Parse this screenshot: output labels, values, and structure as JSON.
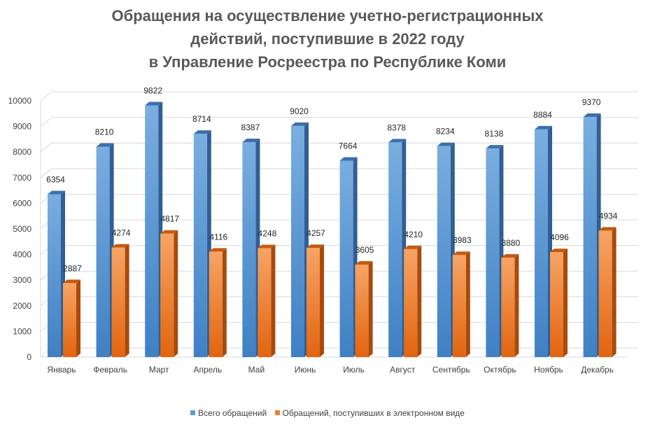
{
  "chart_data": {
    "type": "bar",
    "title_lines": [
      "Обращения на осуществление учетно-регистрационных",
      "действий, поступившие в 2022 году",
      "в Управление Росреестра по Республике Коми"
    ],
    "categories": [
      "Январь",
      "Февраль",
      "Март",
      "Апрель",
      "Май",
      "Июнь",
      "Июль",
      "Август",
      "Сентябрь",
      "Октябрь",
      "Ноябрь",
      "Декабрь"
    ],
    "series": [
      {
        "name": "Всего обращений",
        "color": "#5B9BD5",
        "values": [
          6354,
          8210,
          9822,
          8714,
          8387,
          9020,
          7664,
          8378,
          8234,
          8138,
          8884,
          9370
        ]
      },
      {
        "name": "Обращений, поступивших в электронном виде",
        "color": "#ED7D31",
        "values": [
          2887,
          4274,
          4817,
          4116,
          4248,
          4257,
          3605,
          4210,
          3983,
          3880,
          4096,
          4934
        ]
      }
    ],
    "ylim": [
      0,
      10000
    ],
    "y_ticks": [
      0,
      1000,
      2000,
      3000,
      4000,
      5000,
      6000,
      7000,
      8000,
      9000,
      10000
    ],
    "grid": true,
    "legend_position": "bottom",
    "style": "3d-clustered-column"
  }
}
